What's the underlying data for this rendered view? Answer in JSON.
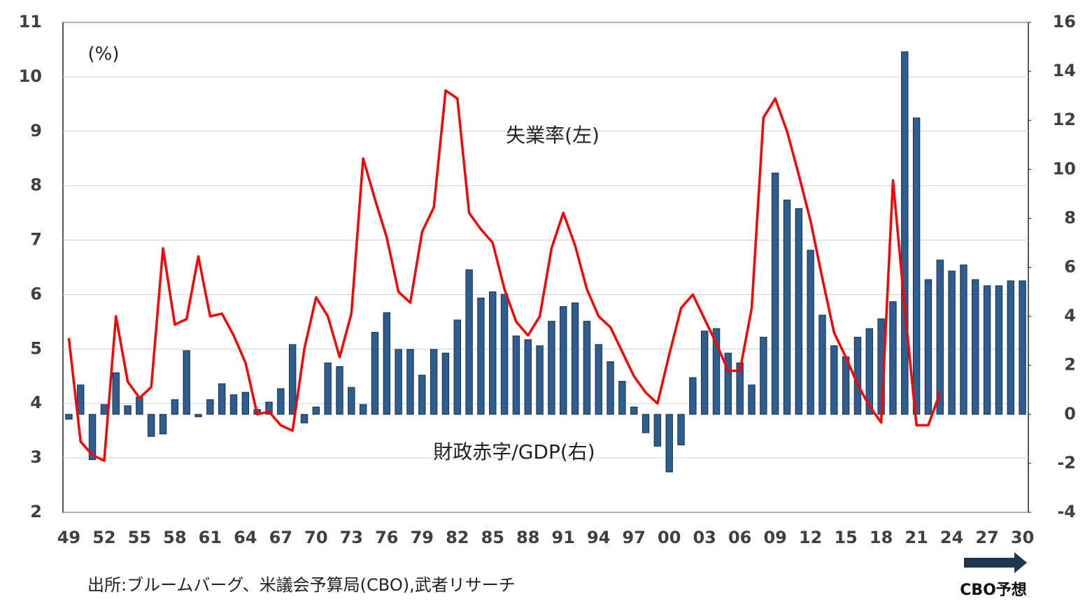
{
  "chart_data": {
    "type": "combo",
    "unit_label": "(%)",
    "source": "出所:ブルームバーグ、米議会予算局(CBO),武者リサーチ",
    "forecast_label": "CBO予想",
    "categories": [
      "49",
      null,
      null,
      "52",
      null,
      null,
      "55",
      null,
      null,
      "58",
      null,
      null,
      "61",
      null,
      null,
      "64",
      null,
      null,
      "67",
      null,
      null,
      "70",
      null,
      null,
      "73",
      null,
      null,
      "76",
      null,
      null,
      "79",
      null,
      null,
      "82",
      null,
      null,
      "85",
      null,
      null,
      "88",
      null,
      null,
      "91",
      null,
      null,
      "94",
      null,
      null,
      "97",
      null,
      null,
      "00",
      null,
      null,
      "03",
      null,
      null,
      "06",
      null,
      null,
      "09",
      null,
      null,
      "12",
      null,
      null,
      "15",
      null,
      null,
      "18",
      null,
      null,
      "21",
      null,
      null,
      "24",
      null,
      null,
      "27",
      null,
      null,
      "30"
    ],
    "series": [
      {
        "name": "財政赤字/GDP(右)",
        "type": "bar",
        "axis": "y2",
        "color": "#2e5d8f",
        "values": [
          -0.2,
          1.2,
          -1.85,
          0.4,
          1.7,
          0.35,
          0.7,
          -0.9,
          -0.8,
          0.6,
          2.6,
          -0.1,
          0.6,
          1.25,
          0.8,
          0.9,
          0.2,
          0.5,
          1.05,
          2.85,
          -0.35,
          0.3,
          2.1,
          1.95,
          1.1,
          0.4,
          3.35,
          4.15,
          2.65,
          2.65,
          1.6,
          2.65,
          2.5,
          3.85,
          5.9,
          4.75,
          5.0,
          4.9,
          3.2,
          3.05,
          2.8,
          3.8,
          4.4,
          4.55,
          3.8,
          2.85,
          2.15,
          1.35,
          0.3,
          -0.75,
          -1.3,
          -2.35,
          -1.25,
          1.5,
          3.4,
          3.5,
          2.5,
          2.1,
          1.2,
          3.15,
          9.85,
          8.75,
          8.4,
          6.7,
          4.05,
          2.8,
          2.35,
          3.15,
          3.5,
          3.9,
          4.6,
          14.8,
          12.1,
          5.5,
          6.3,
          5.85,
          6.1,
          5.5,
          5.25,
          5.25,
          5.45,
          5.45
        ]
      },
      {
        "name": "失業率(左)",
        "type": "line",
        "axis": "y",
        "color": "#ff0000",
        "values": [
          5.2,
          3.3,
          3.05,
          2.95,
          5.6,
          4.4,
          4.1,
          4.3,
          6.85,
          5.45,
          5.55,
          6.7,
          5.6,
          5.65,
          5.25,
          4.75,
          3.8,
          3.85,
          3.6,
          3.5,
          5.0,
          5.95,
          5.6,
          4.85,
          5.65,
          8.5,
          7.75,
          7.05,
          6.05,
          5.85,
          7.15,
          7.6,
          9.75,
          9.6,
          7.5,
          7.2,
          6.95,
          6.1,
          5.5,
          5.25,
          5.6,
          6.85,
          7.5,
          6.9,
          6.1,
          5.6,
          5.4,
          4.95,
          4.5,
          4.2,
          4.0,
          4.9,
          5.75,
          6.0,
          5.55,
          5.1,
          4.6,
          4.6,
          5.75,
          9.25,
          9.6,
          9.0,
          8.2,
          7.35,
          6.3,
          5.3,
          4.85,
          4.35,
          3.95,
          3.65,
          8.1,
          5.75,
          3.6,
          3.6,
          4.2,
          null,
          null,
          null,
          null,
          null,
          null,
          null
        ]
      }
    ],
    "ylim": [
      2,
      11
    ],
    "yticks": [
      2,
      3,
      4,
      5,
      6,
      7,
      8,
      9,
      10,
      11
    ],
    "y2lim": [
      -4,
      16
    ],
    "y2ticks": [
      -4,
      -2,
      0,
      2,
      4,
      6,
      8,
      10,
      12,
      14,
      16
    ],
    "grid": true
  }
}
